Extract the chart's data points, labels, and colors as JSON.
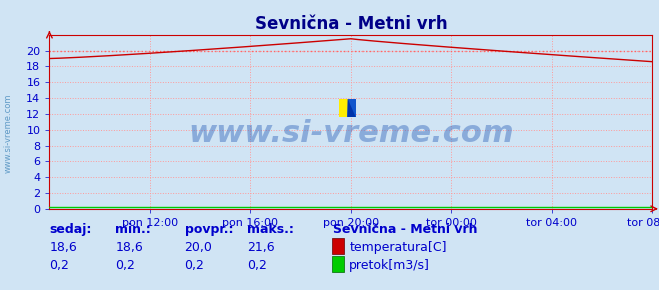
{
  "title": "Sevnična - Metni vrh",
  "bg_color": "#d0e4f4",
  "plot_bg_color": "#d0e4f4",
  "grid_color": "#ff9999",
  "grid_style": ":",
  "ylim": [
    0,
    22
  ],
  "yticks": [
    0,
    2,
    4,
    6,
    8,
    10,
    12,
    14,
    16,
    18,
    20
  ],
  "xlim": [
    0,
    288
  ],
  "xtick_positions": [
    48,
    96,
    144,
    192,
    240,
    288
  ],
  "xtick_labels": [
    "pon 12:00",
    "pon 16:00",
    "pon 20:00",
    "tor 00:00",
    "tor 04:00",
    "tor 08:00"
  ],
  "temp_color": "#cc0000",
  "flow_color": "#00cc00",
  "avg_line_color": "#ff6666",
  "avg_line_style": ":",
  "avg_value": 20.0,
  "temp_start": 19.0,
  "temp_peak": 21.5,
  "temp_end": 18.6,
  "peak_x": 144,
  "flow_value": 0.2,
  "watermark": "www.si-vreme.com",
  "watermark_color": "#3366bb",
  "watermark_alpha": 0.45,
  "watermark_fontsize": 22,
  "axis_color": "#cc0000",
  "tick_color": "#0000cc",
  "tick_fontsize": 8,
  "title_color": "#000088",
  "title_fontsize": 12,
  "legend_title": "Sevnična - Metni vrh",
  "legend_title_color": "#0000cc",
  "legend_title_fontsize": 9,
  "legend_fontsize": 9,
  "stats_labels": [
    "sedaj:",
    "min.:",
    "povpr.:",
    "maks.:"
  ],
  "stats_temp": [
    "18,6",
    "18,6",
    "20,0",
    "21,6"
  ],
  "stats_flow": [
    "0,2",
    "0,2",
    "0,2",
    "0,2"
  ],
  "stats_color": "#0000cc",
  "stats_fontsize": 9,
  "left_label": "www.si-vreme.com"
}
